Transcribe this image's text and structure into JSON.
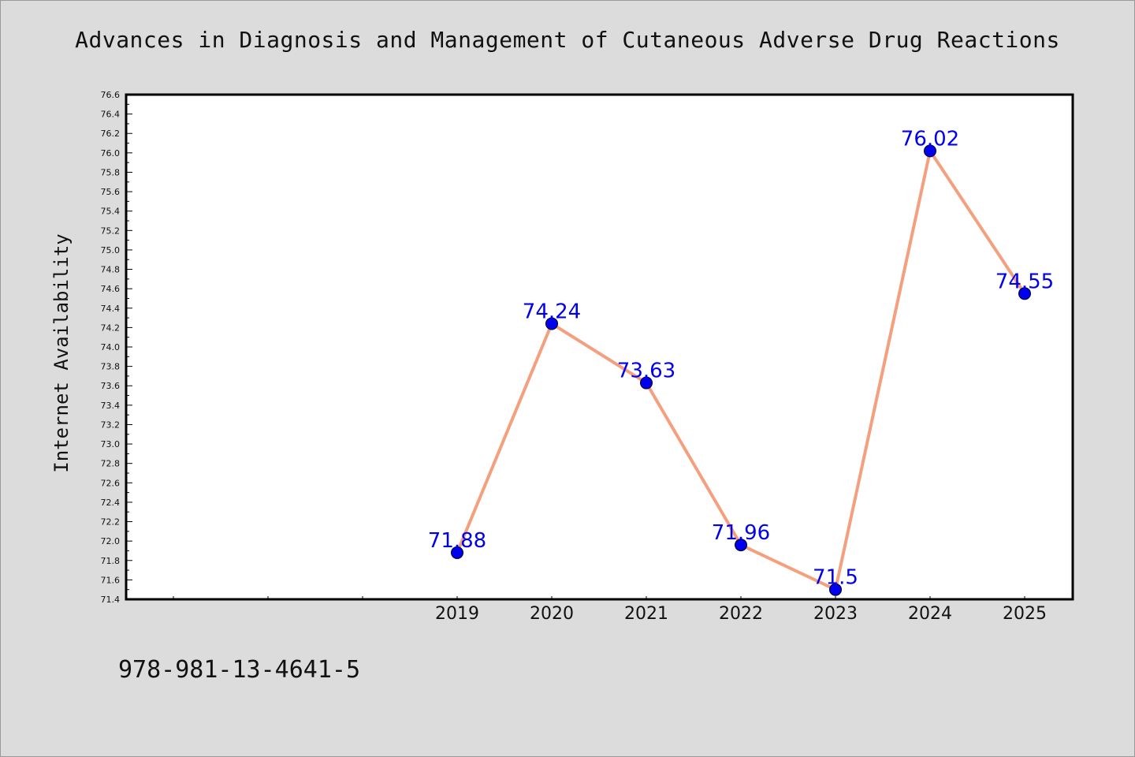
{
  "chart_data": {
    "type": "line",
    "title": "Advances in Diagnosis and Management of Cutaneous Adverse Drug Reactions",
    "ylabel": "Internet Availability",
    "categories": [
      "2019",
      "2020",
      "2021",
      "2022",
      "2023",
      "2024",
      "2025"
    ],
    "series": [
      {
        "values": [
          71.88,
          74.24,
          73.63,
          71.96,
          71.5,
          76.02,
          74.55
        ],
        "labels": [
          "71.88",
          "74.24",
          "73.63",
          "71.96",
          "71.5",
          "76.02",
          "74.55"
        ],
        "line_color": "#f4a07f",
        "marker_color": "#0000ee"
      }
    ],
    "ylim": [
      71.4,
      76.6
    ],
    "y_ticks": [
      "71.4",
      "71.6",
      "71.8",
      "72.0",
      "72.2",
      "72.4",
      "72.6",
      "72.8",
      "73.0",
      "73.2",
      "73.4",
      "73.6",
      "73.8",
      "74.0",
      "74.2",
      "74.4",
      "74.6",
      "74.8",
      "75.0",
      "75.2",
      "75.4",
      "75.6",
      "75.8",
      "76.0",
      "76.2",
      "76.4",
      "76.6"
    ],
    "grid": false,
    "legend": "none",
    "label_color": "#0000ee"
  },
  "footer": {
    "isbn": "978-981-13-4641-5"
  }
}
